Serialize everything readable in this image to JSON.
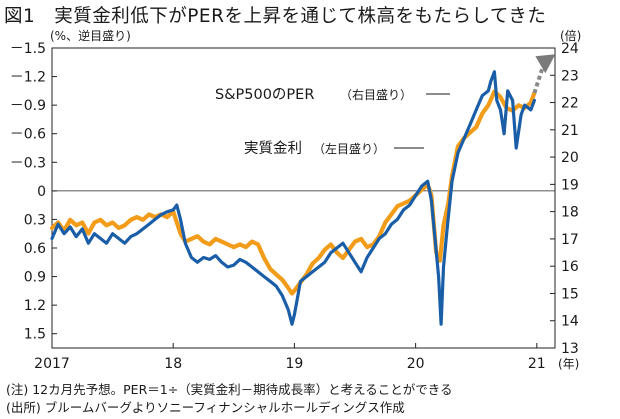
{
  "title": "図1　実質金利低下がPERを上昇を通じて株高をもたらしてきた",
  "left_unit": "(%、逆目盛り)",
  "right_unit": "(倍)",
  "x_unit": "(年)",
  "notes": [
    "(注) 12カ月先予想。PER＝1÷（実質金利－期待成長率）と考えることができる",
    "(出所) ブルームバーグよりソニーフィナンシャルホールディングス作成"
  ],
  "chart_data": {
    "type": "line",
    "title": "実質金利低下がPERを上昇を通じて株高をもたらしてきた",
    "x_ticks": [
      "2017",
      "18",
      "19",
      "20",
      "21"
    ],
    "x_range": [
      2017.0,
      2021.15
    ],
    "left_axis": {
      "label": "%、逆目盛り",
      "inverted": true,
      "range": [
        -1.5,
        1.65
      ],
      "ticks": [
        "－1.5",
        "－1.2",
        "－0.9",
        "－0.6",
        "－0.3",
        "0",
        "0.3",
        "0.6",
        "0.9",
        "1.2",
        "1.5"
      ],
      "tick_values": [
        -1.5,
        -1.2,
        -0.9,
        -0.6,
        -0.3,
        0,
        0.3,
        0.6,
        0.9,
        1.2,
        1.5
      ]
    },
    "right_axis": {
      "label": "倍",
      "range": [
        13,
        24
      ],
      "ticks": [
        "13",
        "14",
        "15",
        "16",
        "17",
        "18",
        "19",
        "20",
        "21",
        "22",
        "23",
        "24"
      ],
      "tick_values": [
        13,
        14,
        15,
        16,
        17,
        18,
        19,
        20,
        21,
        22,
        23,
        24
      ]
    },
    "grid": false,
    "annotations": [
      {
        "text": "S&P500のPER",
        "sub": "（右目盛り）",
        "target": "per"
      },
      {
        "text": "実質金利",
        "sub": "（左目盛り）",
        "target": "real_rate"
      }
    ],
    "arrow": {
      "from_x": 2020.98,
      "from_y": 22.35,
      "to_x": 2021.12,
      "to_y": 23.55
    },
    "series": [
      {
        "id": "per",
        "name": "S&P500のPER",
        "axis": "right",
        "color": "#f29c1a",
        "points": [
          [
            2017.0,
            17.4
          ],
          [
            2017.05,
            17.6
          ],
          [
            2017.1,
            17.3
          ],
          [
            2017.15,
            17.7
          ],
          [
            2017.2,
            17.5
          ],
          [
            2017.25,
            17.6
          ],
          [
            2017.3,
            17.2
          ],
          [
            2017.35,
            17.6
          ],
          [
            2017.4,
            17.7
          ],
          [
            2017.45,
            17.5
          ],
          [
            2017.5,
            17.6
          ],
          [
            2017.55,
            17.4
          ],
          [
            2017.6,
            17.5
          ],
          [
            2017.65,
            17.7
          ],
          [
            2017.7,
            17.8
          ],
          [
            2017.75,
            17.7
          ],
          [
            2017.8,
            17.9
          ],
          [
            2017.85,
            17.8
          ],
          [
            2017.9,
            17.9
          ],
          [
            2017.95,
            17.8
          ],
          [
            2018.0,
            18.0
          ],
          [
            2018.03,
            17.6
          ],
          [
            2018.06,
            17.2
          ],
          [
            2018.1,
            16.9
          ],
          [
            2018.15,
            17.0
          ],
          [
            2018.2,
            17.1
          ],
          [
            2018.25,
            16.9
          ],
          [
            2018.3,
            16.8
          ],
          [
            2018.35,
            17.0
          ],
          [
            2018.4,
            16.9
          ],
          [
            2018.45,
            16.8
          ],
          [
            2018.5,
            16.7
          ],
          [
            2018.55,
            16.8
          ],
          [
            2018.6,
            16.7
          ],
          [
            2018.65,
            16.9
          ],
          [
            2018.7,
            16.8
          ],
          [
            2018.75,
            16.3
          ],
          [
            2018.8,
            15.9
          ],
          [
            2018.85,
            15.7
          ],
          [
            2018.9,
            15.5
          ],
          [
            2018.95,
            15.2
          ],
          [
            2018.98,
            15.0
          ],
          [
            2019.0,
            15.1
          ],
          [
            2019.05,
            15.4
          ],
          [
            2019.1,
            15.7
          ],
          [
            2019.15,
            16.1
          ],
          [
            2019.2,
            16.3
          ],
          [
            2019.25,
            16.6
          ],
          [
            2019.3,
            16.8
          ],
          [
            2019.35,
            16.5
          ],
          [
            2019.4,
            16.3
          ],
          [
            2019.45,
            16.6
          ],
          [
            2019.5,
            16.9
          ],
          [
            2019.55,
            17.0
          ],
          [
            2019.6,
            16.7
          ],
          [
            2019.65,
            16.8
          ],
          [
            2019.7,
            17.1
          ],
          [
            2019.75,
            17.6
          ],
          [
            2019.8,
            17.9
          ],
          [
            2019.85,
            18.2
          ],
          [
            2019.9,
            18.3
          ],
          [
            2019.95,
            18.4
          ],
          [
            2020.0,
            18.6
          ],
          [
            2020.05,
            18.8
          ],
          [
            2020.1,
            19.0
          ],
          [
            2020.13,
            18.6
          ],
          [
            2020.17,
            16.5
          ],
          [
            2020.2,
            16.2
          ],
          [
            2020.23,
            17.5
          ],
          [
            2020.27,
            18.3
          ],
          [
            2020.3,
            19.3
          ],
          [
            2020.35,
            20.4
          ],
          [
            2020.4,
            20.7
          ],
          [
            2020.45,
            20.9
          ],
          [
            2020.5,
            21.1
          ],
          [
            2020.55,
            21.6
          ],
          [
            2020.6,
            21.9
          ],
          [
            2020.65,
            22.4
          ],
          [
            2020.7,
            22.2
          ],
          [
            2020.75,
            21.8
          ],
          [
            2020.8,
            21.7
          ],
          [
            2020.85,
            21.9
          ],
          [
            2020.9,
            21.8
          ],
          [
            2020.95,
            22.0
          ],
          [
            2020.98,
            22.35
          ]
        ]
      },
      {
        "id": "real_rate",
        "name": "実質金利",
        "axis": "left",
        "color": "#1a5ea8",
        "points": [
          [
            2017.0,
            0.5
          ],
          [
            2017.05,
            0.35
          ],
          [
            2017.1,
            0.45
          ],
          [
            2017.15,
            0.38
          ],
          [
            2017.2,
            0.48
          ],
          [
            2017.25,
            0.4
          ],
          [
            2017.3,
            0.55
          ],
          [
            2017.35,
            0.45
          ],
          [
            2017.4,
            0.5
          ],
          [
            2017.45,
            0.55
          ],
          [
            2017.5,
            0.45
          ],
          [
            2017.55,
            0.5
          ],
          [
            2017.6,
            0.55
          ],
          [
            2017.65,
            0.48
          ],
          [
            2017.7,
            0.45
          ],
          [
            2017.75,
            0.4
          ],
          [
            2017.8,
            0.35
          ],
          [
            2017.85,
            0.3
          ],
          [
            2017.9,
            0.25
          ],
          [
            2017.95,
            0.22
          ],
          [
            2018.0,
            0.2
          ],
          [
            2018.03,
            0.15
          ],
          [
            2018.06,
            0.3
          ],
          [
            2018.1,
            0.55
          ],
          [
            2018.15,
            0.7
          ],
          [
            2018.2,
            0.75
          ],
          [
            2018.25,
            0.7
          ],
          [
            2018.3,
            0.72
          ],
          [
            2018.35,
            0.68
          ],
          [
            2018.4,
            0.75
          ],
          [
            2018.45,
            0.8
          ],
          [
            2018.5,
            0.78
          ],
          [
            2018.55,
            0.72
          ],
          [
            2018.6,
            0.75
          ],
          [
            2018.65,
            0.8
          ],
          [
            2018.7,
            0.85
          ],
          [
            2018.75,
            0.9
          ],
          [
            2018.8,
            0.95
          ],
          [
            2018.85,
            1.0
          ],
          [
            2018.9,
            1.1
          ],
          [
            2018.95,
            1.25
          ],
          [
            2018.98,
            1.4
          ],
          [
            2019.0,
            1.3
          ],
          [
            2019.05,
            0.95
          ],
          [
            2019.1,
            0.9
          ],
          [
            2019.15,
            0.85
          ],
          [
            2019.2,
            0.8
          ],
          [
            2019.25,
            0.75
          ],
          [
            2019.3,
            0.65
          ],
          [
            2019.35,
            0.6
          ],
          [
            2019.4,
            0.55
          ],
          [
            2019.45,
            0.65
          ],
          [
            2019.5,
            0.75
          ],
          [
            2019.55,
            0.85
          ],
          [
            2019.6,
            0.7
          ],
          [
            2019.65,
            0.6
          ],
          [
            2019.7,
            0.5
          ],
          [
            2019.75,
            0.45
          ],
          [
            2019.8,
            0.35
          ],
          [
            2019.85,
            0.3
          ],
          [
            2019.9,
            0.2
          ],
          [
            2019.95,
            0.15
          ],
          [
            2020.0,
            0.05
          ],
          [
            2020.05,
            -0.05
          ],
          [
            2020.1,
            -0.1
          ],
          [
            2020.13,
            0.1
          ],
          [
            2020.16,
            0.5
          ],
          [
            2020.19,
            0.9
          ],
          [
            2020.21,
            1.4
          ],
          [
            2020.23,
            0.8
          ],
          [
            2020.26,
            0.4
          ],
          [
            2020.3,
            -0.1
          ],
          [
            2020.35,
            -0.4
          ],
          [
            2020.4,
            -0.55
          ],
          [
            2020.45,
            -0.7
          ],
          [
            2020.5,
            -0.85
          ],
          [
            2020.55,
            -1.0
          ],
          [
            2020.6,
            -1.05
          ],
          [
            2020.62,
            -1.15
          ],
          [
            2020.65,
            -1.25
          ],
          [
            2020.67,
            -0.95
          ],
          [
            2020.7,
            -0.85
          ],
          [
            2020.73,
            -0.6
          ],
          [
            2020.76,
            -1.05
          ],
          [
            2020.8,
            -0.95
          ],
          [
            2020.83,
            -0.45
          ],
          [
            2020.87,
            -0.8
          ],
          [
            2020.9,
            -0.9
          ],
          [
            2020.95,
            -0.85
          ],
          [
            2020.98,
            -0.95
          ]
        ]
      }
    ]
  }
}
